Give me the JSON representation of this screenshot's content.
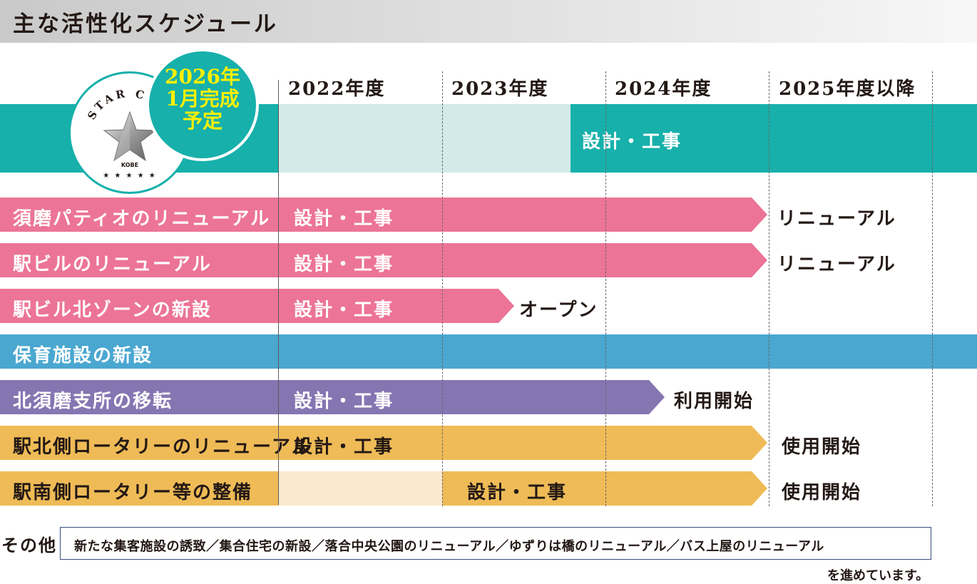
{
  "title": "主な活性化スケジュール",
  "badge": {
    "line1": "2026年",
    "line2": "1月完成",
    "line3": "予定"
  },
  "logo": {
    "arc_text": "STAR CITY",
    "sub_text": "KOBE",
    "stars": "★ ★ ★ ★ ★"
  },
  "years": [
    "2022年度",
    "2023年度",
    "2024年度",
    "2025年度以降"
  ],
  "rows": [
    {
      "label": "",
      "bar_text": "設計・工事"
    },
    {
      "label": "須磨パティオのリニューアル",
      "bar_text": "設計・工事",
      "after_text": "リニューアル"
    },
    {
      "label": "駅ビルのリニューアル",
      "bar_text": "設計・工事",
      "after_text": "リニューアル"
    },
    {
      "label": "駅ビル北ゾーンの新設",
      "bar_text": "設計・工事",
      "after_text": "オープン"
    },
    {
      "label": "保育施設の新設"
    },
    {
      "label": "北須磨支所の移転",
      "bar_text": "設計・工事",
      "after_text": "利用開始"
    },
    {
      "label": "駅北側ロータリーのリニューアル",
      "bar_text": "設計・工事",
      "after_text": "使用開始"
    },
    {
      "label": "駅南側ロータリー等の整備",
      "bar_text": "設計・工事",
      "after_text": "使用開始"
    }
  ],
  "other": {
    "label": "その他",
    "text": "新たな集客施設の誘致／集合住宅の新設／落合中央公園のリニューアル／ゆずりは橋のリニューアル／バス上屋のリニューアル",
    "footer": "を進めています。"
  },
  "colors": {
    "teal": "#17b0ab",
    "pink": "#ec7497",
    "blue": "#4aa7d0",
    "purple": "#8576b2",
    "yellow": "#efbb57",
    "badge_text": "#fff000"
  }
}
